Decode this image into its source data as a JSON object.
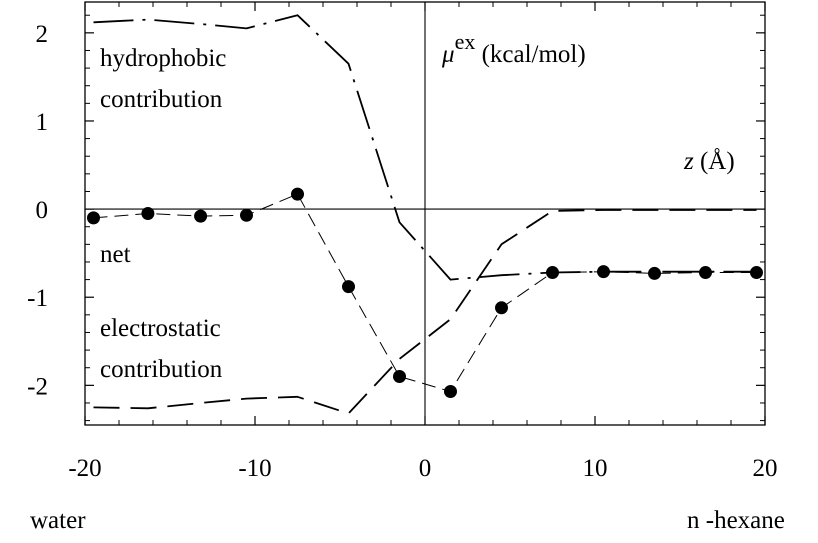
{
  "chart_data": {
    "type": "line",
    "xlim": [
      -20,
      20
    ],
    "ylim": [
      -2.45,
      2.35
    ],
    "x_ticks": [
      -20,
      -10,
      0,
      10,
      20
    ],
    "y_ticks": [
      2,
      1,
      0,
      -1,
      -2
    ],
    "x_tick_labels": [
      "-20",
      "-10",
      "0",
      "10",
      "20"
    ],
    "y_tick_labels": [
      "2",
      "1",
      "0",
      "-1",
      "-2"
    ],
    "grid": false,
    "zero_axes": true,
    "annotations": {
      "yaxis_mu": "μ",
      "yaxis_sup": "ex",
      "yaxis_unit": " (kcal/mol)",
      "xaxis_z": "z",
      "xaxis_unit": " (Å)",
      "hydrophobic_line1": "hydrophobic",
      "hydrophobic_line2": "contribution",
      "net": "net",
      "electrostatic_line1": "electrostatic",
      "electrostatic_line2": "contribution"
    },
    "bottom_labels": {
      "left": "water",
      "right": "n -hexane"
    },
    "series": [
      {
        "key": "hydrophobic",
        "style": "dash-dot",
        "x": [
          -19.5,
          -16.3,
          -13.2,
          -10.5,
          -7.5,
          -4.5,
          -1.5,
          1.5,
          4.5,
          7.5,
          10.5,
          13.5,
          16.5,
          19.5
        ],
        "values": [
          2.12,
          2.15,
          2.1,
          2.05,
          2.2,
          1.65,
          -0.15,
          -0.8,
          -0.75,
          -0.72,
          -0.71,
          -0.71,
          -0.71,
          -0.71
        ]
      },
      {
        "key": "electrostatic",
        "style": "dashed",
        "x": [
          -19.5,
          -16.3,
          -13.2,
          -10.5,
          -7.5,
          -4.5,
          -1.5,
          1.5,
          4.5,
          7.5,
          10.5,
          13.5,
          16.5,
          19.5
        ],
        "values": [
          -2.25,
          -2.26,
          -2.2,
          -2.15,
          -2.13,
          -2.32,
          -1.7,
          -1.25,
          -0.4,
          -0.02,
          -0.01,
          -0.01,
          -0.01,
          -0.01
        ]
      },
      {
        "key": "net",
        "style": "thin-dashed-markers",
        "x": [
          -19.5,
          -16.3,
          -13.2,
          -10.5,
          -7.5,
          -4.5,
          -1.5,
          1.5,
          4.5,
          7.5,
          10.5,
          13.5,
          16.5,
          19.5
        ],
        "values": [
          -0.1,
          -0.05,
          -0.08,
          -0.07,
          0.17,
          -0.88,
          -1.9,
          -2.07,
          -1.12,
          -0.72,
          -0.71,
          -0.73,
          -0.72,
          -0.72
        ]
      }
    ]
  }
}
